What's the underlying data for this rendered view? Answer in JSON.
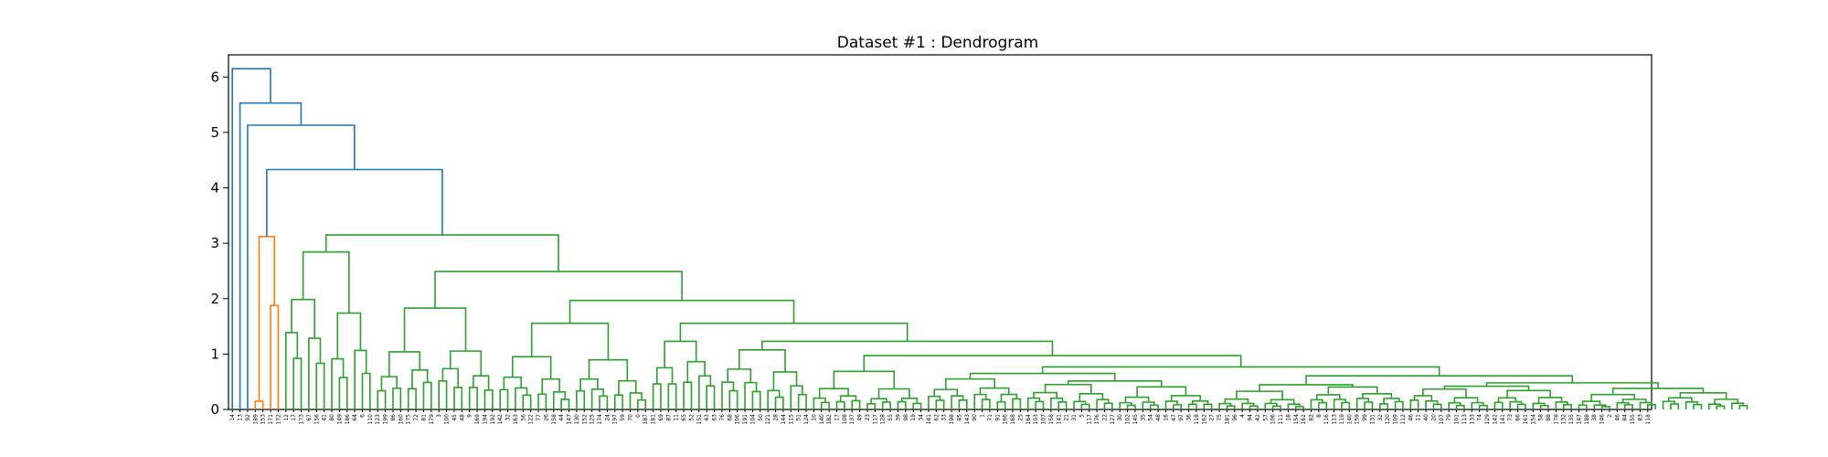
{
  "chart_data": {
    "type": "dendrogram",
    "title": "Dataset #1 : Dendrogram",
    "xlabel": "",
    "ylabel": "",
    "ylim": [
      0,
      6.4
    ],
    "yticks": [
      "0",
      "1",
      "2",
      "3",
      "4",
      "5",
      "6"
    ],
    "grid": false,
    "legend": "none",
    "colors": {
      "above_threshold": "#1f77b4",
      "cluster_1": "#ff7f0e",
      "cluster_2": "#2ca02c"
    },
    "leaf_order": [
      "14",
      "13",
      "92",
      "189",
      "153",
      "171",
      "172",
      "12",
      "17",
      "173",
      "67",
      "156",
      "41",
      "80",
      "149",
      "186",
      "64",
      "6",
      "110",
      "123",
      "199",
      "86",
      "160",
      "175",
      "72",
      "81",
      "179",
      "3",
      "100",
      "45",
      "48",
      "9",
      "169",
      "194",
      "192",
      "142",
      "32",
      "163",
      "56",
      "122",
      "77",
      "26",
      "158",
      "44",
      "147",
      "130",
      "152",
      "125",
      "174",
      "24",
      "197",
      "59",
      "70",
      "0",
      "187",
      "181",
      "69",
      "87",
      "11",
      "65",
      "52",
      "151",
      "43",
      "63",
      "76",
      "68",
      "106",
      "191",
      "104",
      "50",
      "121",
      "28",
      "144",
      "115",
      "51",
      "124",
      "10",
      "140",
      "182",
      "17",
      "108",
      "137",
      "49",
      "23",
      "117",
      "128",
      "55",
      "39",
      "98",
      "19",
      "34",
      "141",
      "62",
      "33",
      "198",
      "85",
      "143",
      "90",
      "1",
      "71",
      "91",
      "166",
      "168",
      "25",
      "164",
      "103",
      "107",
      "158",
      "141",
      "21",
      "31",
      "5",
      "117",
      "176",
      "22",
      "127",
      "30",
      "102",
      "145",
      "35",
      "54",
      "48",
      "16",
      "47",
      "97",
      "36",
      "118",
      "162",
      "27",
      "75",
      "181",
      "96",
      "4",
      "94",
      "42",
      "57",
      "106",
      "111",
      "18",
      "154",
      "162",
      "82",
      "8",
      "116",
      "113",
      "119",
      "140",
      "159",
      "99",
      "131",
      "32",
      "120",
      "109",
      "112",
      "46",
      "11",
      "40",
      "20",
      "107",
      "79",
      "101",
      "113",
      "133",
      "74",
      "129",
      "142",
      "141",
      "73",
      "66",
      "161",
      "154",
      "58",
      "88",
      "178",
      "132",
      "135",
      "147",
      "188",
      "38",
      "146",
      "2",
      "46",
      "84",
      "155",
      "83",
      "118"
    ],
    "merges": [
      {
        "a": 190,
        "b": 191,
        "h": 0.24
      },
      {
        "a": 184,
        "b": 185,
        "h": 0.31
      },
      {
        "a": 170,
        "b": 171,
        "h": 0.36
      },
      {
        "a": 160,
        "b": 161,
        "h": 0.41
      },
      {
        "a": 150,
        "b": 151,
        "h": 0.28
      },
      {
        "a": 140,
        "b": 141,
        "h": 0.33
      },
      {
        "a": 130,
        "b": 131,
        "h": 0.29
      },
      {
        "a": 120,
        "b": 121,
        "h": 0.46
      },
      {
        "a": 110,
        "b": 111,
        "h": 0.35
      },
      {
        "a": 100,
        "b": 101,
        "h": 0.31
      },
      {
        "a": 90,
        "b": 91,
        "h": 0.38
      },
      {
        "a": 80,
        "b": 81,
        "h": 0.33
      },
      {
        "a": 70,
        "b": 71,
        "h": 0.37
      },
      {
        "a": 60,
        "b": 61,
        "h": 0.44
      },
      {
        "a": 50,
        "b": 51,
        "h": 0.23
      },
      {
        "a": 40,
        "b": 41,
        "h": 0.51
      },
      {
        "a": 30,
        "b": 31,
        "h": 0.55
      },
      {
        "a": 20,
        "b": 21,
        "h": 0.62
      },
      {
        "a": 10,
        "b": 11,
        "h": 0.73
      }
    ],
    "clusters": [
      {
        "name": "",
        "color": "cluster_1",
        "leaf_start": 3,
        "leaf_end": 6,
        "height": 3.12
      },
      {
        "name": "",
        "color": "cluster_2",
        "leaf_start": 7,
        "leaf_end": 198,
        "height": 3.15
      }
    ],
    "top_links": [
      {
        "left_leaf": 0,
        "right_subtree": "rest",
        "h": 6.15
      },
      {
        "left_leaf": 1,
        "right_subtree": "rest",
        "h": 5.53
      },
      {
        "left_leaf": 2,
        "right_subtree": "rest",
        "h": 5.13
      },
      {
        "left_subtree": "cluster_1",
        "right_subtree": "cluster_2",
        "h": 4.33
      }
    ],
    "notable_heights": [
      3.15,
      3.02,
      2.92,
      2.82,
      2.77,
      2.58,
      2.55,
      2.53,
      2.47,
      2.29,
      2.27,
      2.09,
      2.02,
      1.92,
      1.76,
      1.75,
      1.72,
      1.7,
      1.56,
      1.52,
      1.49,
      1.37,
      1.3,
      1.22
    ]
  }
}
